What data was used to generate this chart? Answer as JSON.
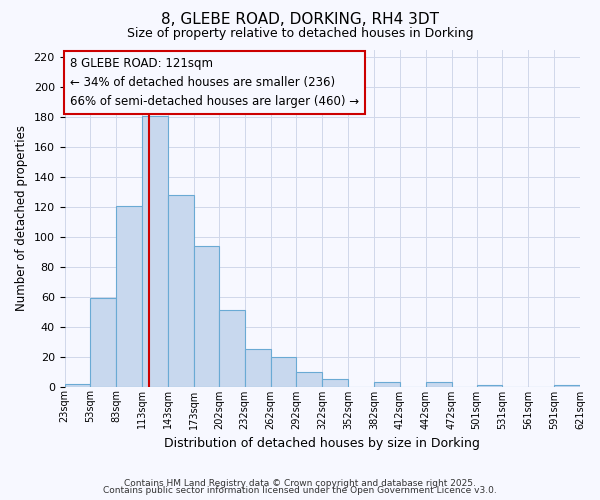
{
  "title": "8, GLEBE ROAD, DORKING, RH4 3DT",
  "subtitle": "Size of property relative to detached houses in Dorking",
  "xlabel": "Distribution of detached houses by size in Dorking",
  "ylabel": "Number of detached properties",
  "bar_left_edges": [
    23,
    53,
    83,
    113,
    143,
    173,
    202,
    232,
    262,
    292,
    322,
    352,
    382,
    412,
    442,
    472,
    501,
    531,
    561,
    591
  ],
  "bar_heights": [
    2,
    59,
    121,
    181,
    128,
    94,
    51,
    25,
    20,
    10,
    5,
    0,
    3,
    0,
    3,
    0,
    1,
    0,
    0,
    1
  ],
  "all_edges": [
    23,
    53,
    83,
    113,
    143,
    173,
    202,
    232,
    262,
    292,
    322,
    352,
    382,
    412,
    442,
    472,
    501,
    531,
    561,
    591,
    621
  ],
  "bar_color": "#c8d8ee",
  "bar_edge_color": "#6aaad4",
  "ylim": [
    0,
    225
  ],
  "yticks": [
    0,
    20,
    40,
    60,
    80,
    100,
    120,
    140,
    160,
    180,
    200,
    220
  ],
  "xtick_labels": [
    "23sqm",
    "53sqm",
    "83sqm",
    "113sqm",
    "143sqm",
    "173sqm",
    "202sqm",
    "232sqm",
    "262sqm",
    "292sqm",
    "322sqm",
    "352sqm",
    "382sqm",
    "412sqm",
    "442sqm",
    "472sqm",
    "501sqm",
    "531sqm",
    "561sqm",
    "591sqm",
    "621sqm"
  ],
  "vline_x": 121,
  "vline_color": "#cc0000",
  "annotation_title": "8 GLEBE ROAD: 121sqm",
  "annotation_line1": "← 34% of detached houses are smaller (236)",
  "annotation_line2": "66% of semi-detached houses are larger (460) →",
  "bg_color": "#f7f8ff",
  "grid_color": "#d0d8ea",
  "footer1": "Contains HM Land Registry data © Crown copyright and database right 2025.",
  "footer2": "Contains public sector information licensed under the Open Government Licence v3.0."
}
